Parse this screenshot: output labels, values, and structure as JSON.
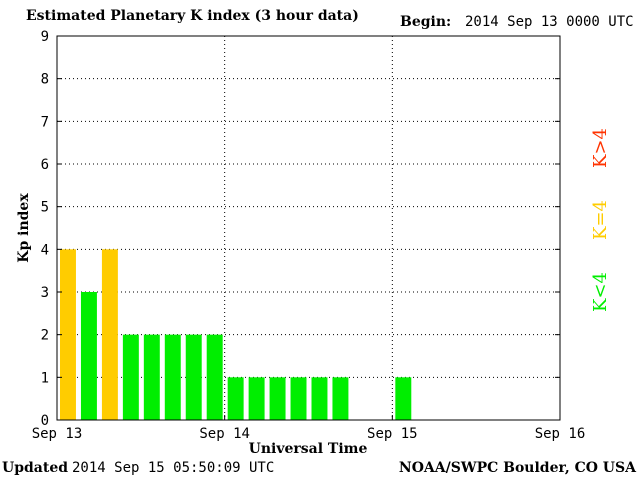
{
  "header": {
    "title": "Estimated Planetary K index (3 hour data)",
    "begin_label": "Begin:",
    "begin_value": "2014 Sep 13 0000 UTC"
  },
  "footer": {
    "updated_label": "Updated",
    "updated_value": "2014 Sep 15 05:50:09 UTC",
    "credit": "NOAA/SWPC Boulder, CO USA"
  },
  "legend": {
    "low": "K<4",
    "equal": "K=4",
    "high": "K>4"
  },
  "colors": {
    "low": "#00ee00",
    "equal": "#ffcc00",
    "high": "#ff3300"
  },
  "chart_data": {
    "type": "bar",
    "title": "Estimated Planetary K index (3 hour data)",
    "xlabel": "Universal Time",
    "ylabel": "Kp index",
    "x_ticks": [
      "Sep 13",
      "Sep 14",
      "Sep 15",
      "Sep 16"
    ],
    "y_ticks": [
      "0",
      "1",
      "2",
      "3",
      "4",
      "5",
      "6",
      "7",
      "8",
      "9"
    ],
    "ylim": [
      0,
      9
    ],
    "interval_hours": 3,
    "days": 3,
    "grid": true,
    "values": [
      4,
      3,
      4,
      2,
      2,
      2,
      2,
      2,
      1,
      1,
      1,
      1,
      1,
      1,
      null,
      null,
      1
    ]
  }
}
